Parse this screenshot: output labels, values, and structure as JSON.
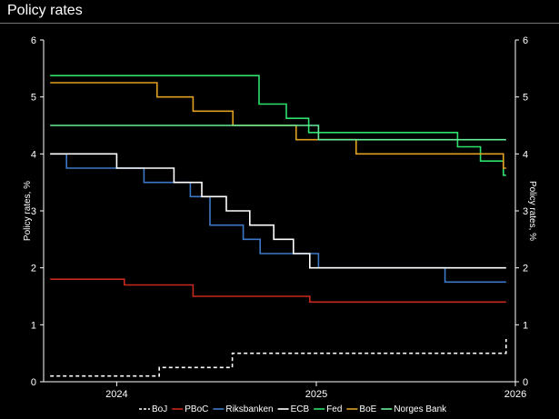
{
  "page": {
    "title": "Policy rates"
  },
  "chart_data": {
    "type": "line",
    "title": "Policy rates",
    "xlabel": "",
    "ylabel": "Policy rates, %",
    "ylabel_right": "Policy rates, %",
    "x_range": [
      "2023-08-20",
      "2026-01-01"
    ],
    "ylim": [
      0,
      6
    ],
    "x_ticks": [
      "2024",
      "2025",
      "2026"
    ],
    "y_ticks": [
      "0",
      "1",
      "2",
      "3",
      "4",
      "5",
      "6"
    ],
    "grid": false,
    "legend_position": "bottom",
    "series": [
      {
        "name": "BoJ",
        "color": "#ffffff",
        "dash": true,
        "points": [
          [
            "2023-09-01",
            0.1
          ],
          [
            "2024-03-19",
            0.1
          ],
          [
            "2024-03-19",
            0.25
          ],
          [
            "2024-07-31",
            0.25
          ],
          [
            "2024-07-31",
            0.5
          ],
          [
            "2025-12-15",
            0.5
          ],
          [
            "2025-12-15",
            0.75
          ]
        ]
      },
      {
        "name": "PBoC",
        "color": "#c8281e",
        "dash": false,
        "points": [
          [
            "2023-09-01",
            1.8
          ],
          [
            "2024-01-15",
            1.8
          ],
          [
            "2024-01-15",
            1.7
          ],
          [
            "2024-05-20",
            1.7
          ],
          [
            "2024-05-20",
            1.5
          ],
          [
            "2024-12-20",
            1.5
          ],
          [
            "2024-12-20",
            1.4
          ],
          [
            "2025-12-15",
            1.4
          ]
        ]
      },
      {
        "name": "Riksbanken",
        "color": "#3d78c8",
        "dash": false,
        "points": [
          [
            "2023-09-01",
            4.0
          ],
          [
            "2023-10-01",
            4.0
          ],
          [
            "2023-10-01",
            3.75
          ],
          [
            "2024-02-20",
            3.75
          ],
          [
            "2024-02-20",
            3.5
          ],
          [
            "2024-05-15",
            3.5
          ],
          [
            "2024-05-15",
            3.25
          ],
          [
            "2024-06-20",
            3.25
          ],
          [
            "2024-06-20",
            2.75
          ],
          [
            "2024-08-20",
            2.75
          ],
          [
            "2024-08-20",
            2.5
          ],
          [
            "2024-09-20",
            2.5
          ],
          [
            "2024-09-20",
            2.25
          ],
          [
            "2024-11-05",
            2.25
          ],
          [
            "2024-11-05",
            2.25
          ],
          [
            "2025-01-05",
            2.25
          ],
          [
            "2025-01-05",
            2.0
          ],
          [
            "2025-08-25",
            2.0
          ],
          [
            "2025-08-25",
            1.75
          ],
          [
            "2025-12-15",
            1.75
          ]
        ]
      },
      {
        "name": "ECB",
        "color": "#ffffff",
        "dash": false,
        "points": [
          [
            "2023-09-01",
            4.0
          ],
          [
            "2024-01-01",
            4.0
          ],
          [
            "2024-01-01",
            3.75
          ],
          [
            "2024-04-15",
            3.75
          ],
          [
            "2024-04-15",
            3.5
          ],
          [
            "2024-06-05",
            3.5
          ],
          [
            "2024-06-05",
            3.25
          ],
          [
            "2024-07-20",
            3.25
          ],
          [
            "2024-07-20",
            3.0
          ],
          [
            "2024-09-01",
            3.0
          ],
          [
            "2024-09-01",
            2.75
          ],
          [
            "2024-10-15",
            2.75
          ],
          [
            "2024-10-15",
            2.5
          ],
          [
            "2024-11-20",
            2.5
          ],
          [
            "2024-11-20",
            2.25
          ],
          [
            "2024-12-20",
            2.25
          ],
          [
            "2024-12-20",
            2.0
          ],
          [
            "2025-12-15",
            2.0
          ]
        ]
      },
      {
        "name": "Fed",
        "color": "#2ee06e",
        "dash": false,
        "points": [
          [
            "2023-09-01",
            5.375
          ],
          [
            "2024-09-18",
            5.375
          ],
          [
            "2024-09-18",
            4.875
          ],
          [
            "2024-11-07",
            4.875
          ],
          [
            "2024-11-07",
            4.625
          ],
          [
            "2024-12-18",
            4.625
          ],
          [
            "2024-12-18",
            4.375
          ],
          [
            "2025-09-17",
            4.375
          ],
          [
            "2025-09-17",
            4.125
          ],
          [
            "2025-10-29",
            4.125
          ],
          [
            "2025-10-29",
            3.875
          ],
          [
            "2025-12-10",
            3.875
          ],
          [
            "2025-12-10",
            3.625
          ],
          [
            "2025-12-15",
            3.625
          ]
        ]
      },
      {
        "name": "BoE",
        "color": "#e0a020",
        "dash": false,
        "points": [
          [
            "2023-09-01",
            5.25
          ],
          [
            "2024-03-15",
            5.25
          ],
          [
            "2024-03-15",
            5.0
          ],
          [
            "2024-05-20",
            5.0
          ],
          [
            "2024-05-20",
            4.75
          ],
          [
            "2024-08-01",
            4.75
          ],
          [
            "2024-08-01",
            4.5
          ],
          [
            "2024-11-25",
            4.5
          ],
          [
            "2024-11-25",
            4.25
          ],
          [
            "2025-03-15",
            4.25
          ],
          [
            "2025-03-15",
            4.0
          ],
          [
            "2025-12-10",
            4.0
          ],
          [
            "2025-12-10",
            3.75
          ],
          [
            "2025-12-15",
            3.75
          ]
        ]
      },
      {
        "name": "Norges Bank",
        "color": "#66ee99",
        "dash": false,
        "points": [
          [
            "2023-09-01",
            4.5
          ],
          [
            "2025-01-05",
            4.5
          ],
          [
            "2025-01-05",
            4.25
          ],
          [
            "2025-12-15",
            4.25
          ]
        ]
      }
    ]
  }
}
